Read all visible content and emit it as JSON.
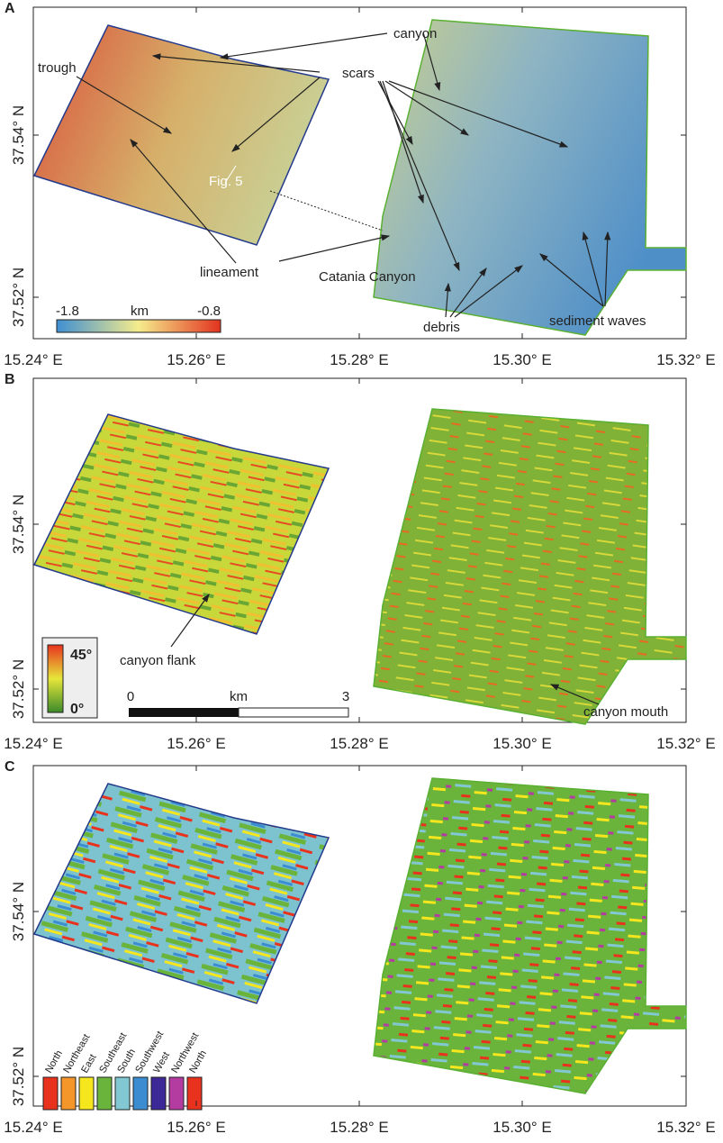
{
  "panels": [
    {
      "label": "A",
      "x_axis_labels": [
        "15.24° E",
        "15.26° E",
        "15.28° E",
        "15.30° E",
        "15.32° E"
      ],
      "y_axis_labels": [
        "37.54° N",
        "37.52° N"
      ],
      "annotations": [
        "canyon",
        "trough",
        "scars",
        "Fig. 5",
        "lineament",
        "Catania Canyon",
        "debris",
        "sediment waves"
      ],
      "legend": {
        "min": "-1.8",
        "unit": "km",
        "max": "-0.8"
      }
    },
    {
      "label": "B",
      "x_axis_labels": [
        "15.24° E",
        "15.26° E",
        "15.28° E",
        "15.30° E",
        "15.32° E"
      ],
      "y_axis_labels": [
        "37.54° N",
        "37.52° N"
      ],
      "annotations": [
        "canyon flank",
        "canyon mouth"
      ],
      "legend": {
        "max": "45°",
        "min": "0°"
      },
      "scale_bar": {
        "start": "0",
        "unit": "km",
        "end": "3"
      }
    },
    {
      "label": "C",
      "x_axis_labels": [
        "15.24° E",
        "15.26° E",
        "15.28° E",
        "15.30° E",
        "15.32° E"
      ],
      "y_axis_labels": [
        "37.54° N",
        "37.52° N"
      ],
      "legend": [
        {
          "label": "North",
          "color": "#e8321e"
        },
        {
          "label": "Northeast",
          "color": "#f5962a"
        },
        {
          "label": "East",
          "color": "#f5e61e"
        },
        {
          "label": "Southeast",
          "color": "#6ab43c"
        },
        {
          "label": "South",
          "color": "#82c8d2"
        },
        {
          "label": "Southwest",
          "color": "#3c8cd2"
        },
        {
          "label": "West",
          "color": "#3c2896"
        },
        {
          "label": "Northwest",
          "color": "#b43ca0"
        },
        {
          "label": "North",
          "color": "#e8321e"
        }
      ]
    }
  ]
}
